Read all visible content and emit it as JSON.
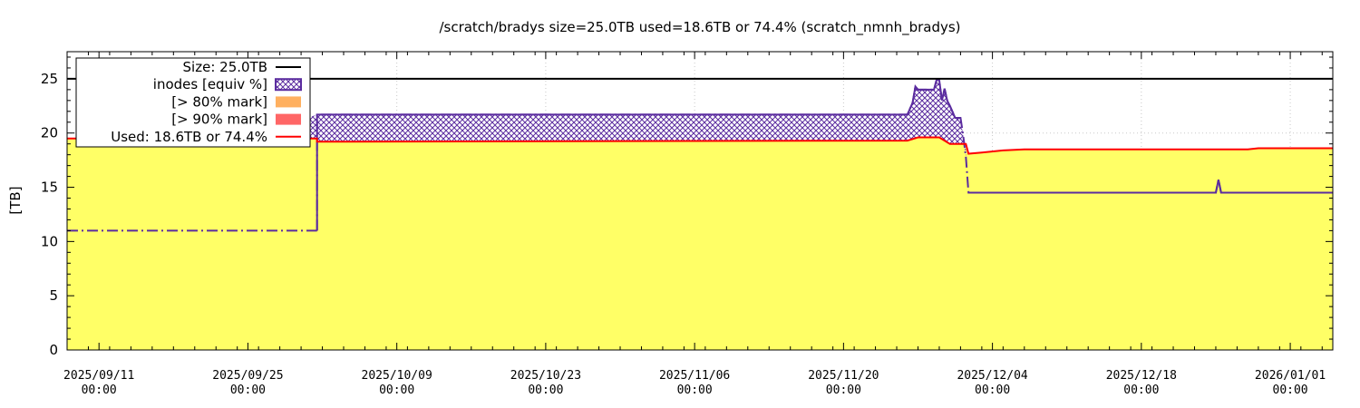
{
  "chart_data": {
    "type": "area",
    "title": "/scratch/bradys size=25.0TB used=18.6TB or 74.4% (scratch_nmnh_bradys)",
    "ylabel": "[TB]",
    "xlabel": "",
    "ylim": [
      0,
      27.5
    ],
    "yticks": [
      0,
      5,
      10,
      15,
      20,
      25
    ],
    "x_axis": {
      "start": "2025-09-08T00:00",
      "end": "2026-01-05T00:00",
      "tick_dates": [
        "2025-09-11",
        "2025-09-25",
        "2025-10-09",
        "2025-10-23",
        "2025-11-06",
        "2025-11-20",
        "2025-12-04",
        "2025-12-18",
        "2026-01-01"
      ],
      "tick_labels": [
        [
          "2025/09/11",
          "00:00"
        ],
        [
          "2025/09/25",
          "00:00"
        ],
        [
          "2025/10/09",
          "00:00"
        ],
        [
          "2025/10/23",
          "00:00"
        ],
        [
          "2025/11/06",
          "00:00"
        ],
        [
          "2025/11/20",
          "00:00"
        ],
        [
          "2025/12/04",
          "00:00"
        ],
        [
          "2025/12/18",
          "00:00"
        ],
        [
          "2026/01/01",
          "00:00"
        ]
      ]
    },
    "grid": true,
    "legend_position": "top-left",
    "legend": [
      {
        "label": "Size: 25.0TB",
        "kind": "line",
        "color": "#000000"
      },
      {
        "label": "inodes [equiv %]",
        "kind": "hatch",
        "color": "#5b2c9f"
      },
      {
        "label": "[> 80% mark]",
        "kind": "box",
        "color": "#ffb060"
      },
      {
        "label": "[> 90% mark]",
        "kind": "box",
        "color": "#ff6666"
      },
      {
        "label": "Used: 18.6TB or 74.4%",
        "kind": "line",
        "color": "#ff0000"
      }
    ],
    "series": [
      {
        "name": "Size: 25.0TB",
        "color": "#000000",
        "points": [
          [
            "2025-09-08",
            25.0
          ],
          [
            "2026-01-05",
            25.0
          ]
        ]
      },
      {
        "name": "Used: 18.6TB or 74.4%",
        "color": "#ff0000",
        "fill": "#ffff66",
        "points": [
          [
            "2025-09-08",
            19.5
          ],
          [
            "2025-10-01 12:00",
            19.5
          ],
          [
            "2025-10-01 12:00",
            19.2
          ],
          [
            "2025-11-26",
            19.3
          ],
          [
            "2025-11-27",
            19.6
          ],
          [
            "2025-11-29",
            19.6
          ],
          [
            "2025-11-30",
            19.0
          ],
          [
            "2025-12-01 12:00",
            19.0
          ],
          [
            "2025-12-01 18:00",
            18.1
          ],
          [
            "2025-12-03",
            18.2
          ],
          [
            "2025-12-05",
            18.4
          ],
          [
            "2025-12-07",
            18.5
          ],
          [
            "2025-12-28",
            18.5
          ],
          [
            "2025-12-29",
            18.6
          ],
          [
            "2026-01-05",
            18.6
          ]
        ]
      },
      {
        "name": "inodes [equiv %]",
        "color": "#5b2c9f",
        "dash": "dashdot_before_2025-10-01",
        "points": [
          [
            "2025-09-08",
            11.0
          ],
          [
            "2025-10-01 12:00",
            11.0
          ],
          [
            "2025-10-01 12:00",
            21.7
          ],
          [
            "2025-11-26",
            21.7
          ],
          [
            "2025-11-26 12:00",
            22.8
          ],
          [
            "2025-11-26 18:00",
            24.3
          ],
          [
            "2025-11-27",
            24.0
          ],
          [
            "2025-11-28 12:00",
            24.0
          ],
          [
            "2025-11-28 18:00",
            24.9
          ],
          [
            "2025-11-29",
            24.9
          ],
          [
            "2025-11-29 06:00",
            23.0
          ],
          [
            "2025-11-29 12:00",
            24.1
          ],
          [
            "2025-11-29 18:00",
            23.0
          ],
          [
            "2025-11-30",
            22.5
          ],
          [
            "2025-11-30 12:00",
            21.4
          ],
          [
            "2025-12-01",
            21.4
          ],
          [
            "2025-12-01 06:00",
            19.8
          ],
          [
            "2025-12-01 12:00",
            17.8
          ],
          [
            "2025-12-01 18:00",
            14.5
          ],
          [
            "2025-12-25",
            14.5
          ],
          [
            "2025-12-25 06:00",
            15.7
          ],
          [
            "2025-12-25 12:00",
            14.5
          ],
          [
            "2026-01-05",
            14.5
          ]
        ]
      }
    ]
  }
}
